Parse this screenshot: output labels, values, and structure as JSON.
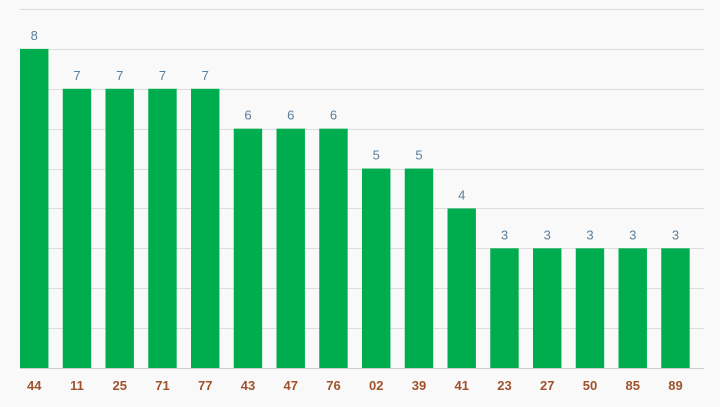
{
  "chart_data": {
    "type": "bar",
    "title": "",
    "xlabel": "",
    "ylabel": "",
    "categories": [
      "44",
      "11",
      "25",
      "71",
      "77",
      "43",
      "47",
      "76",
      "02",
      "39",
      "41",
      "23",
      "27",
      "50",
      "85",
      "89"
    ],
    "values": [
      8,
      7,
      7,
      7,
      7,
      6,
      6,
      6,
      5,
      5,
      4,
      3,
      3,
      3,
      3,
      3
    ],
    "ylim": [
      0,
      9
    ],
    "grid": true,
    "legend": "none",
    "data_labels": true
  },
  "colors": {
    "bar": "#00ad4e",
    "value_label": "#5a7d9a",
    "tick_label": "#a0522d",
    "background": "#f9f9f9"
  }
}
